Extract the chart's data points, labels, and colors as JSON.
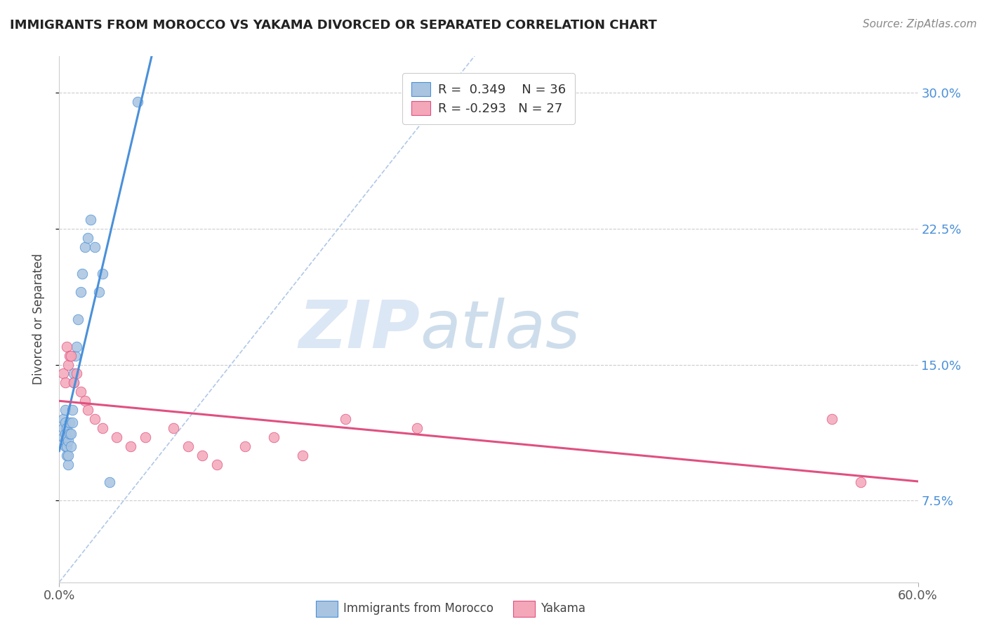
{
  "title": "IMMIGRANTS FROM MOROCCO VS YAKAMA DIVORCED OR SEPARATED CORRELATION CHART",
  "source_text": "Source: ZipAtlas.com",
  "ylabel": "Divorced or Separated",
  "legend_label1": "Immigrants from Morocco",
  "legend_label2": "Yakama",
  "r1": 0.349,
  "n1": 36,
  "r2": -0.293,
  "n2": 27,
  "xlim": [
    0.0,
    0.6
  ],
  "ylim": [
    0.03,
    0.32
  ],
  "xticks": [
    0.0,
    0.6
  ],
  "xtick_labels": [
    "0.0%",
    "60.0%"
  ],
  "yticks": [
    0.075,
    0.15,
    0.225,
    0.3
  ],
  "ytick_labels": [
    "7.5%",
    "15.0%",
    "22.5%",
    "30.0%"
  ],
  "color1": "#a8c4e0",
  "color2": "#f4a7b9",
  "line_color1": "#4a90d9",
  "line_color2": "#e05080",
  "diagonal_color": "#b0c8e8",
  "watermark_zip": "ZIP",
  "watermark_atlas": "atlas",
  "watermark_color_zip": "#c8d8ee",
  "watermark_color_atlas": "#b0c8d8",
  "background_color": "#ffffff",
  "blue_scatter_x": [
    0.003,
    0.003,
    0.003,
    0.004,
    0.004,
    0.004,
    0.004,
    0.004,
    0.005,
    0.005,
    0.005,
    0.005,
    0.006,
    0.006,
    0.006,
    0.007,
    0.007,
    0.008,
    0.008,
    0.009,
    0.009,
    0.01,
    0.01,
    0.011,
    0.012,
    0.013,
    0.015,
    0.016,
    0.018,
    0.02,
    0.022,
    0.025,
    0.028,
    0.03,
    0.035,
    0.055
  ],
  "blue_scatter_y": [
    0.11,
    0.115,
    0.12,
    0.105,
    0.108,
    0.112,
    0.118,
    0.125,
    0.1,
    0.105,
    0.11,
    0.115,
    0.095,
    0.1,
    0.108,
    0.112,
    0.118,
    0.105,
    0.112,
    0.118,
    0.125,
    0.14,
    0.145,
    0.155,
    0.16,
    0.175,
    0.19,
    0.2,
    0.215,
    0.22,
    0.23,
    0.215,
    0.19,
    0.2,
    0.085,
    0.295
  ],
  "pink_scatter_x": [
    0.003,
    0.004,
    0.005,
    0.006,
    0.007,
    0.008,
    0.01,
    0.012,
    0.015,
    0.018,
    0.02,
    0.025,
    0.03,
    0.04,
    0.05,
    0.06,
    0.08,
    0.09,
    0.1,
    0.11,
    0.13,
    0.15,
    0.17,
    0.2,
    0.25,
    0.54,
    0.56
  ],
  "pink_scatter_y": [
    0.145,
    0.14,
    0.16,
    0.15,
    0.155,
    0.155,
    0.14,
    0.145,
    0.135,
    0.13,
    0.125,
    0.12,
    0.115,
    0.11,
    0.105,
    0.11,
    0.115,
    0.105,
    0.1,
    0.095,
    0.105,
    0.11,
    0.1,
    0.12,
    0.115,
    0.12,
    0.085
  ]
}
